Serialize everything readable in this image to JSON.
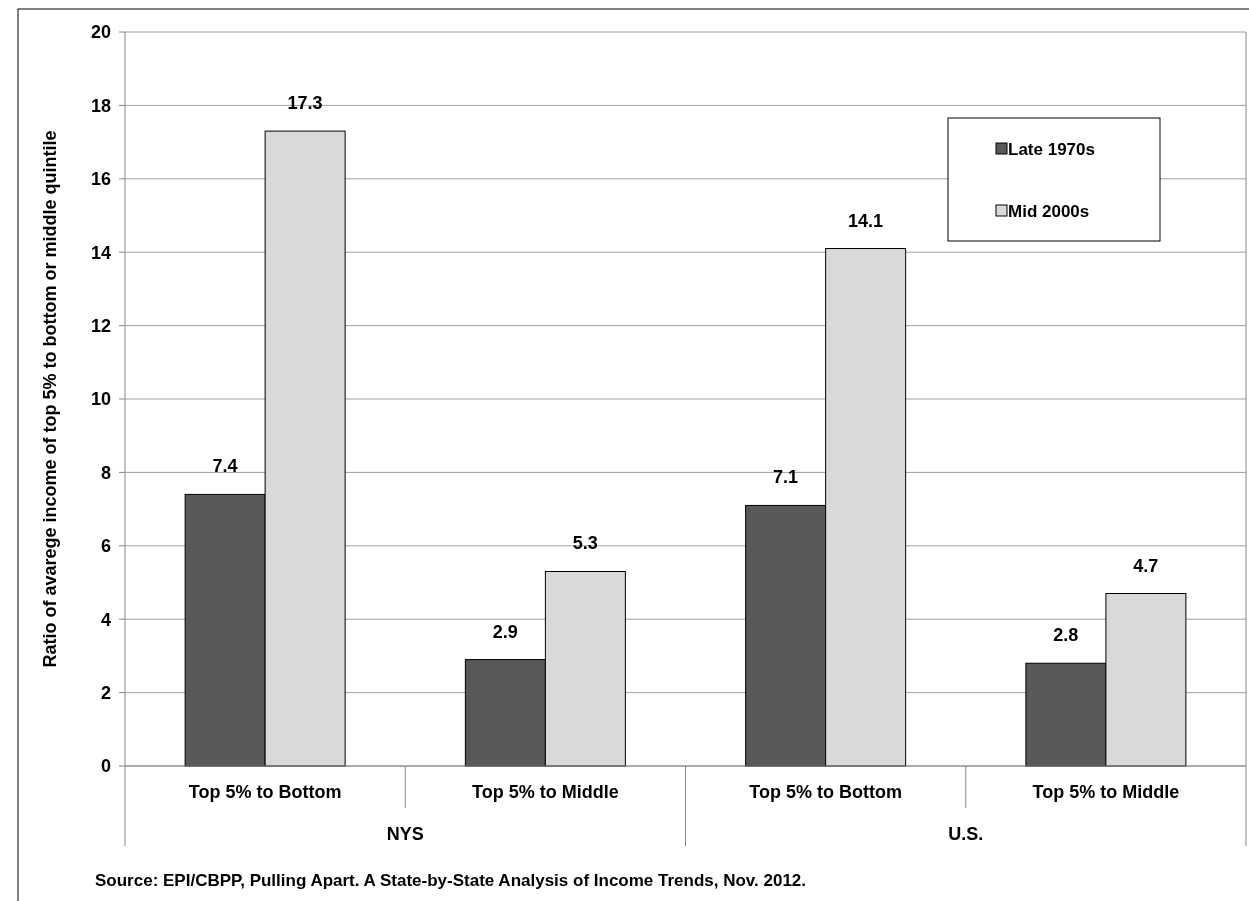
{
  "chart_data": {
    "type": "bar",
    "ylabel": "Ratio of avarege income of top 5% to bottom or middle quintile",
    "categories": [
      "Top 5% to Bottom",
      "Top 5% to Middle",
      "Top 5% to Bottom",
      "Top 5% to Middle"
    ],
    "series": [
      {
        "name": "Late 1970s",
        "color": "#595959",
        "values": [
          7.4,
          2.9,
          7.1,
          2.8
        ]
      },
      {
        "name": "Mid 2000s",
        "color": "#d9d9d9",
        "values": [
          17.3,
          5.3,
          14.1,
          4.7
        ]
      }
    ],
    "ylim": [
      0,
      20
    ],
    "yticks": [
      0,
      2,
      4,
      6,
      8,
      10,
      12,
      14,
      16,
      18,
      20
    ],
    "grid": "y",
    "legend": "top right",
    "data_labels": true,
    "annotations": [
      "NYS",
      "U.S.",
      "Source: EPI/CBPP, Pulling Apart. A State-by-State Analysis of Income Trends, Nov. 2012."
    ]
  }
}
